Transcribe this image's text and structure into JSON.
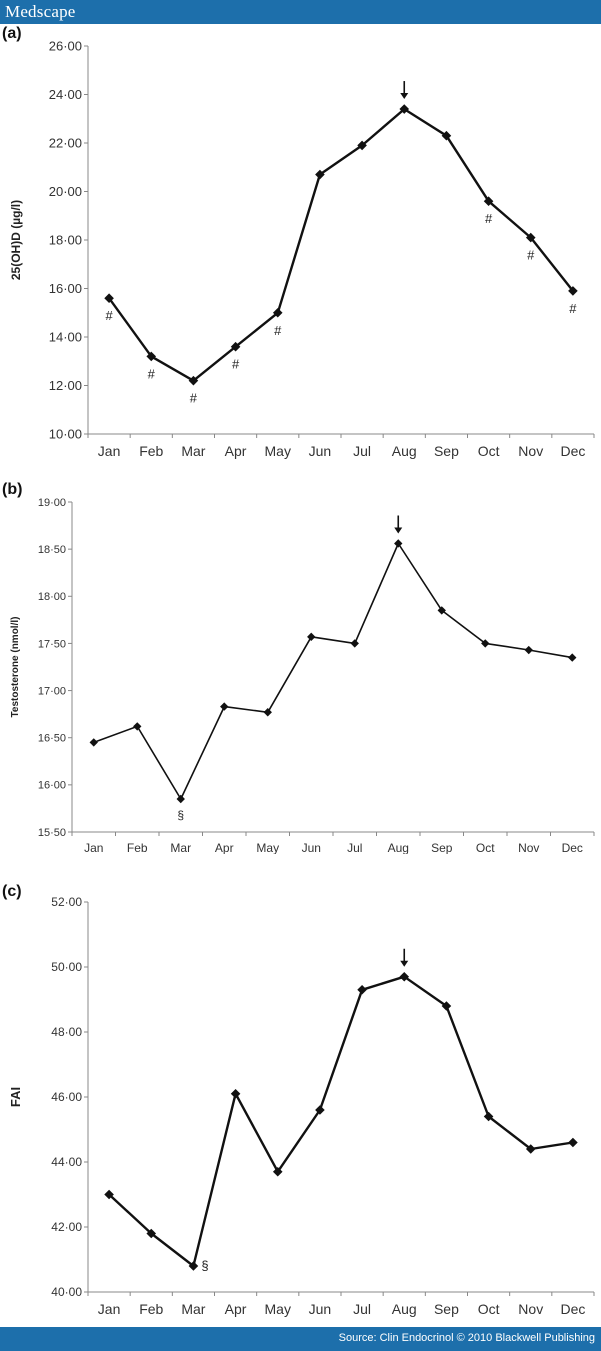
{
  "header": {
    "brand": "Medscape"
  },
  "footer": {
    "source": "Source: Clin Endocrinol © 2010 Blackwell Publishing"
  },
  "chart_data": [
    {
      "type": "line",
      "panel": "(a)",
      "ylabel": "25(OH)D (µg/l)",
      "categories": [
        "Jan",
        "Feb",
        "Mar",
        "Apr",
        "May",
        "Jun",
        "Jul",
        "Aug",
        "Sep",
        "Oct",
        "Nov",
        "Dec"
      ],
      "values": [
        15.6,
        13.2,
        12.2,
        13.6,
        15.0,
        20.7,
        21.9,
        23.4,
        22.3,
        19.6,
        18.1,
        15.9
      ],
      "ylim": [
        10,
        26
      ],
      "yticks": [
        "10·00",
        "12·00",
        "14·00",
        "16·00",
        "18·00",
        "20·00",
        "22·00",
        "24·00",
        "26·00"
      ],
      "arrow_category": "Aug",
      "annotations": [
        {
          "category": "Jan",
          "symbol": "#"
        },
        {
          "category": "Feb",
          "symbol": "#"
        },
        {
          "category": "Mar",
          "symbol": "#"
        },
        {
          "category": "Apr",
          "symbol": "#"
        },
        {
          "category": "May",
          "symbol": "#"
        },
        {
          "category": "Oct",
          "symbol": "#"
        },
        {
          "category": "Nov",
          "symbol": "#"
        },
        {
          "category": "Dec",
          "symbol": "#"
        }
      ]
    },
    {
      "type": "line",
      "panel": "(b)",
      "ylabel": "Testosterone (nmol/l)",
      "categories": [
        "Jan",
        "Feb",
        "Mar",
        "Apr",
        "May",
        "Jun",
        "Jul",
        "Aug",
        "Sep",
        "Oct",
        "Nov",
        "Dec"
      ],
      "values": [
        16.45,
        16.62,
        15.85,
        16.83,
        16.77,
        17.57,
        17.5,
        18.56,
        17.85,
        17.5,
        17.43,
        17.35
      ],
      "ylim": [
        15.5,
        19
      ],
      "yticks": [
        "15·50",
        "16·00",
        "16·50",
        "17·00",
        "17·50",
        "18·00",
        "18·50",
        "19·00"
      ],
      "arrow_category": "Aug",
      "annotations": [
        {
          "category": "Mar",
          "symbol": "§"
        }
      ]
    },
    {
      "type": "line",
      "panel": "(c)",
      "ylabel": "FAI",
      "categories": [
        "Jan",
        "Feb",
        "Mar",
        "Apr",
        "May",
        "Jun",
        "Jul",
        "Aug",
        "Sep",
        "Oct",
        "Nov",
        "Dec"
      ],
      "values": [
        43.0,
        41.8,
        40.8,
        46.1,
        43.7,
        45.6,
        49.3,
        49.7,
        48.8,
        45.4,
        44.4,
        44.6
      ],
      "ylim": [
        40,
        52
      ],
      "yticks": [
        "40·00",
        "42·00",
        "44·00",
        "46·00",
        "48·00",
        "50·00",
        "52·00"
      ],
      "arrow_category": "Aug",
      "annotations": [
        {
          "category": "Mar",
          "symbol": "§"
        }
      ]
    }
  ]
}
